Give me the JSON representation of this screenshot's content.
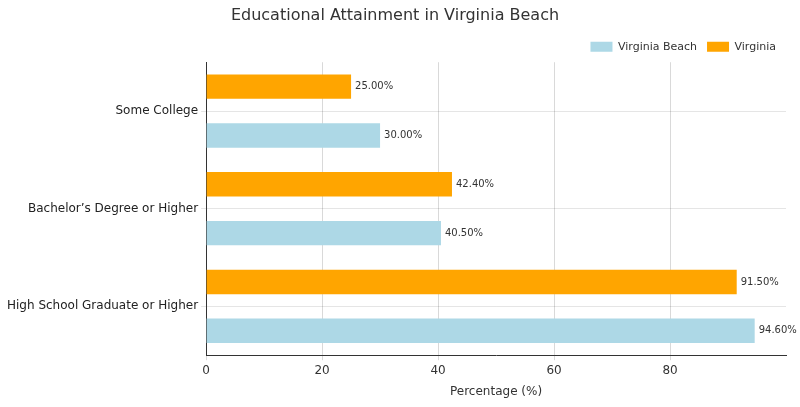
{
  "chart_data": {
    "type": "bar",
    "orientation": "horizontal",
    "title": "Educational Attainment in Virginia Beach",
    "x_label": "Percentage (%)",
    "categories": [
      "Some College",
      "Bachelor’s Degree or Higher",
      "High School Graduate or Higher"
    ],
    "series": [
      {
        "name": "Virginia Beach",
        "color": "#add8e6",
        "values": [
          30.0,
          40.5,
          94.6
        ],
        "value_labels": [
          "30.00%",
          "40.50%",
          "94.60%"
        ]
      },
      {
        "name": "Virginia",
        "color": "#ffa500",
        "values": [
          25.0,
          42.4,
          91.5
        ],
        "value_labels": [
          "25.00%",
          "42.40%",
          "91.50%"
        ]
      }
    ],
    "xlim": [
      0,
      100
    ],
    "xticks": [
      0,
      20,
      40,
      60,
      80
    ],
    "grid": true,
    "legend": "top-right",
    "data_labels": true
  }
}
